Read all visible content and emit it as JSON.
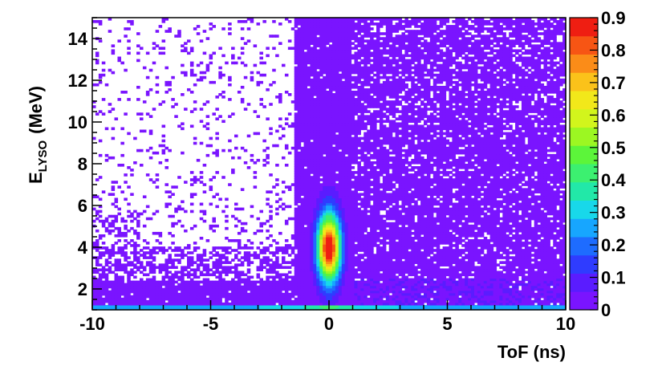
{
  "chart_data": {
    "type": "heatmap",
    "xlabel": "ToF (ns)",
    "ylabel": {
      "main": "E",
      "sub": "LYSO",
      "unit": "(MeV)"
    },
    "xlim": [
      -10,
      10
    ],
    "ylim": [
      1,
      15
    ],
    "zlim": [
      0,
      0.9
    ],
    "x_ticks": [
      -10,
      -5,
      0,
      5,
      10
    ],
    "y_ticks": [
      2,
      4,
      6,
      8,
      10,
      12,
      14
    ],
    "z_ticks": [
      0,
      0.1,
      0.2,
      0.3,
      0.4,
      0.5,
      0.6,
      0.7,
      0.8,
      0.9
    ],
    "x_tick_labels": [
      "-10",
      "-5",
      "0",
      "5",
      "10"
    ],
    "y_tick_labels": [
      "2",
      "4",
      "6",
      "8",
      "10",
      "12",
      "14"
    ],
    "z_tick_labels": [
      "0",
      "0.1",
      "0.2",
      "0.3",
      "0.4",
      "0.5",
      "0.6",
      "0.7",
      "0.8",
      "0.9"
    ],
    "features": {
      "peak": {
        "x": 0.0,
        "y": 4.0,
        "value": 0.9,
        "sigma_x": 0.35,
        "sigma_y": 1.1
      },
      "tail_top_y": 7.0,
      "low_energy_band": {
        "y_max": 1.25,
        "value": 0.35
      },
      "random_coincidence_level": 0.02
    },
    "colorscale": [
      "#7a14ff",
      "#5a1cff",
      "#2f3cff",
      "#1e6cff",
      "#17a6ff",
      "#18d8ea",
      "#22e8a8",
      "#3cf070",
      "#5cf53a",
      "#9cf722",
      "#d2f51c",
      "#f2e81a",
      "#fbc21a",
      "#fb8c18",
      "#f75514",
      "#ef1e12"
    ]
  }
}
